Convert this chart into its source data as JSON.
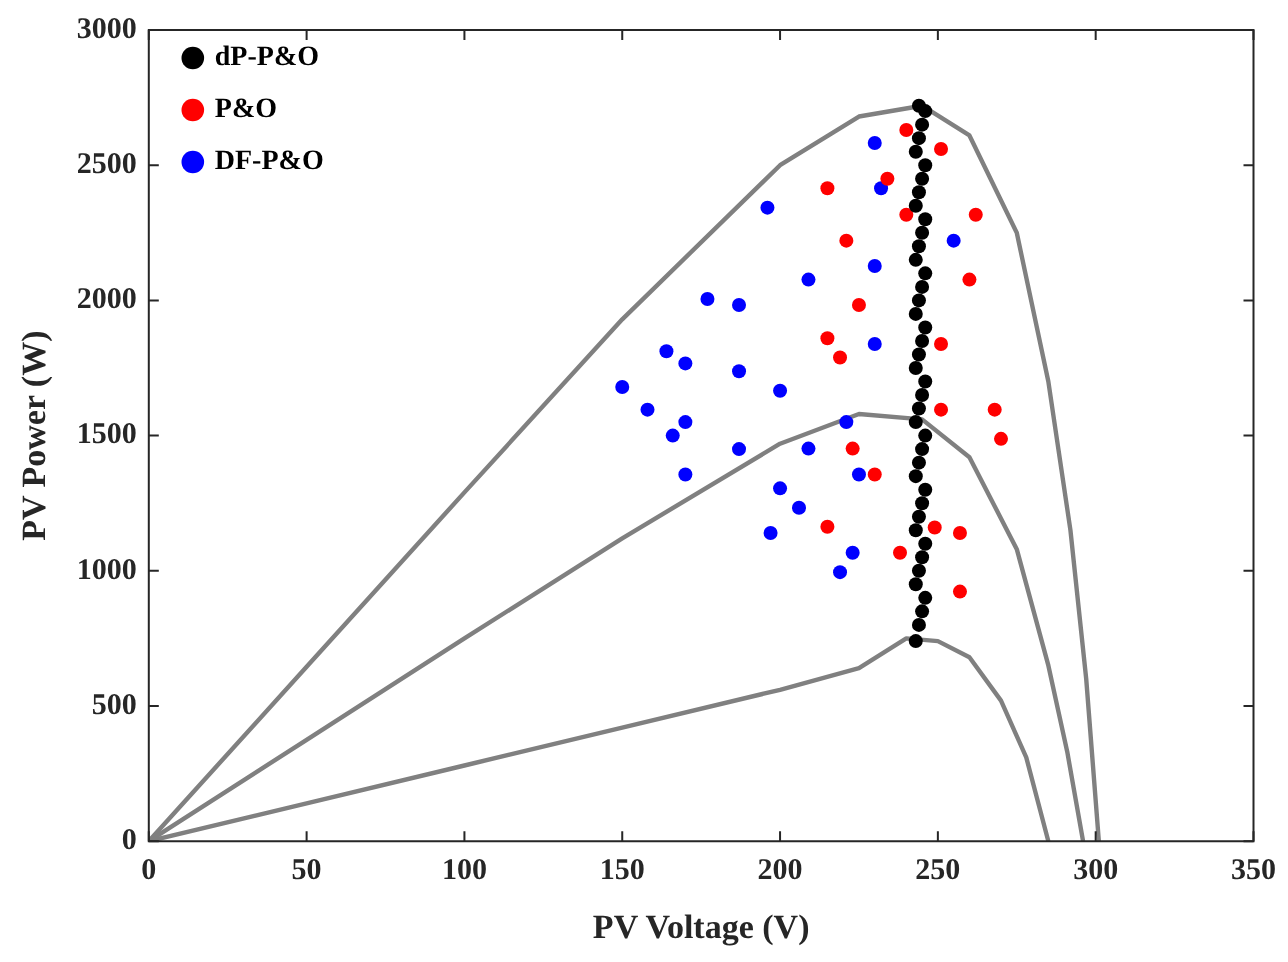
{
  "chart_data": {
    "type": "scatter",
    "xlabel": "PV Voltage (V)",
    "ylabel": "PV Power (W)",
    "xlim": [
      0,
      350
    ],
    "xticks": [
      0,
      50,
      100,
      150,
      200,
      250,
      300,
      350
    ],
    "ylim": [
      0,
      3000
    ],
    "yticks": [
      0,
      500,
      1000,
      1500,
      2000,
      2500,
      3000
    ],
    "grid": false,
    "legend": "top left",
    "marker": "circle",
    "series": [
      {
        "name": "dP-P&O",
        "color": "#000000",
        "type": "scatter",
        "x": [
          243,
          244,
          245,
          246,
          243,
          244,
          245,
          246,
          243,
          244,
          245,
          246,
          243,
          244,
          245,
          246,
          243,
          244,
          245,
          246,
          243,
          244,
          245,
          246,
          243,
          244,
          245,
          246,
          243,
          244,
          245,
          246,
          243,
          244,
          245,
          246,
          243,
          244,
          245,
          246,
          244
        ],
        "values": [
          740,
          800,
          850,
          900,
          950,
          1000,
          1050,
          1100,
          1150,
          1200,
          1250,
          1300,
          1350,
          1400,
          1450,
          1500,
          1550,
          1600,
          1650,
          1700,
          1750,
          1800,
          1850,
          1900,
          1950,
          2000,
          2050,
          2100,
          2150,
          2200,
          2250,
          2300,
          2350,
          2400,
          2450,
          2500,
          2550,
          2600,
          2650,
          2700,
          2720
        ]
      },
      {
        "name": "P&O",
        "color": "#ff0000",
        "type": "scatter",
        "x": [
          215,
          240,
          245,
          251,
          260,
          268,
          270,
          215,
          257,
          219,
          221,
          215,
          230,
          251,
          242,
          238,
          257,
          223,
          262,
          225,
          240,
          251,
          234,
          249
        ],
        "values": [
          2415,
          2630,
          null,
          2560,
          2077,
          1596,
          1488,
          1163,
          1140,
          1789,
          2221,
          1860,
          1356,
          1839,
          null,
          1067,
          923,
          1452,
          2317,
          1983,
          2317,
          1596,
          2450,
          1160
        ]
      },
      {
        "name": "DF-P&O",
        "color": "#0000ff",
        "type": "scatter",
        "x": [
          150,
          164,
          170,
          170,
          170,
          177,
          196,
          230,
          215,
          187,
          200,
          197,
          219,
          209,
          221,
          166,
          158,
          187,
          209,
          230,
          232,
          255,
          230,
          225,
          206,
          187,
          223,
          200
        ],
        "values": [
          1680,
          1812,
          1767,
          1550,
          1356,
          2005,
          2343,
          2582,
          null,
          1738,
          1666,
          1140,
          995,
          1452,
          1550,
          1500,
          1596,
          1983,
          2077,
          2127,
          2415,
          2221,
          1839,
          1356,
          1233,
          1450,
          1067,
          1305
        ]
      },
      {
        "color": "#808080",
        "type": "line",
        "marker": "none",
        "x": [
          0,
          50,
          100,
          150,
          200,
          225,
          245,
          260,
          275,
          285,
          292,
          297,
          301
        ],
        "values": [
          0,
          645,
          1290,
          1930,
          2500,
          2680,
          2720,
          2610,
          2250,
          1700,
          1150,
          600,
          0
        ]
      },
      {
        "color": "#808080",
        "type": "line",
        "marker": "none",
        "x": [
          0,
          50,
          100,
          150,
          200,
          225,
          245,
          260,
          275,
          285,
          291,
          296
        ],
        "values": [
          0,
          375,
          750,
          1120,
          1470,
          1580,
          1560,
          1420,
          1080,
          650,
          330,
          0
        ]
      },
      {
        "color": "#808080",
        "type": "line",
        "marker": "none",
        "x": [
          0,
          50,
          100,
          150,
          200,
          225,
          240,
          250,
          260,
          270,
          278,
          285
        ],
        "values": [
          0,
          140,
          280,
          420,
          560,
          640,
          750,
          740,
          680,
          520,
          310,
          0
        ]
      }
    ]
  }
}
